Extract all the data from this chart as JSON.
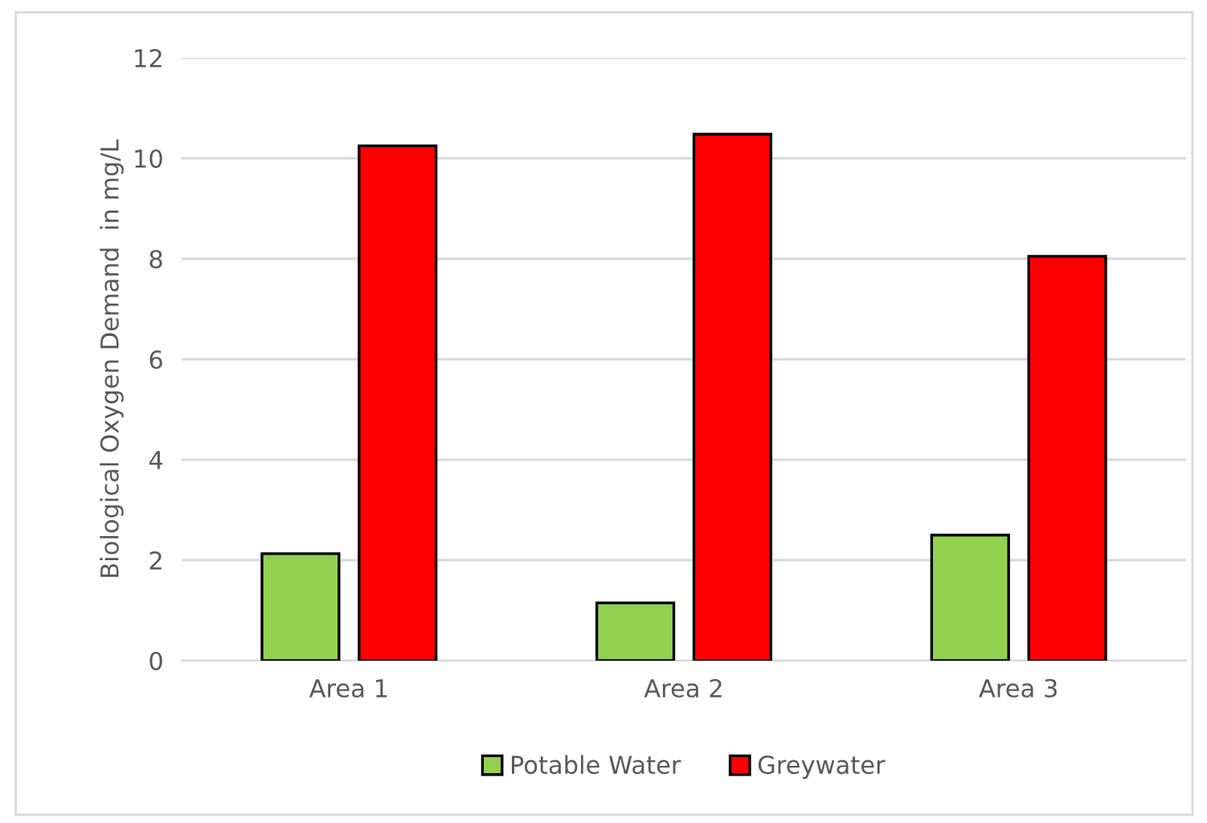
{
  "chart_data": {
    "type": "bar",
    "ylabel": "Biological Oxygen Demand  in mg/L",
    "categories": [
      "Area 1",
      "Area 2",
      "Area 3"
    ],
    "series": [
      {
        "name": "Potable Water",
        "color": "#92d050",
        "values": [
          2.13,
          1.15,
          2.5
        ]
      },
      {
        "name": "Greywater",
        "color": "#ff0000",
        "values": [
          10.25,
          10.48,
          8.05
        ]
      }
    ],
    "ylim": [
      0,
      12
    ],
    "yticks": [
      0,
      2,
      4,
      6,
      8,
      10,
      12
    ],
    "grid": "y",
    "legend": "bottom"
  }
}
